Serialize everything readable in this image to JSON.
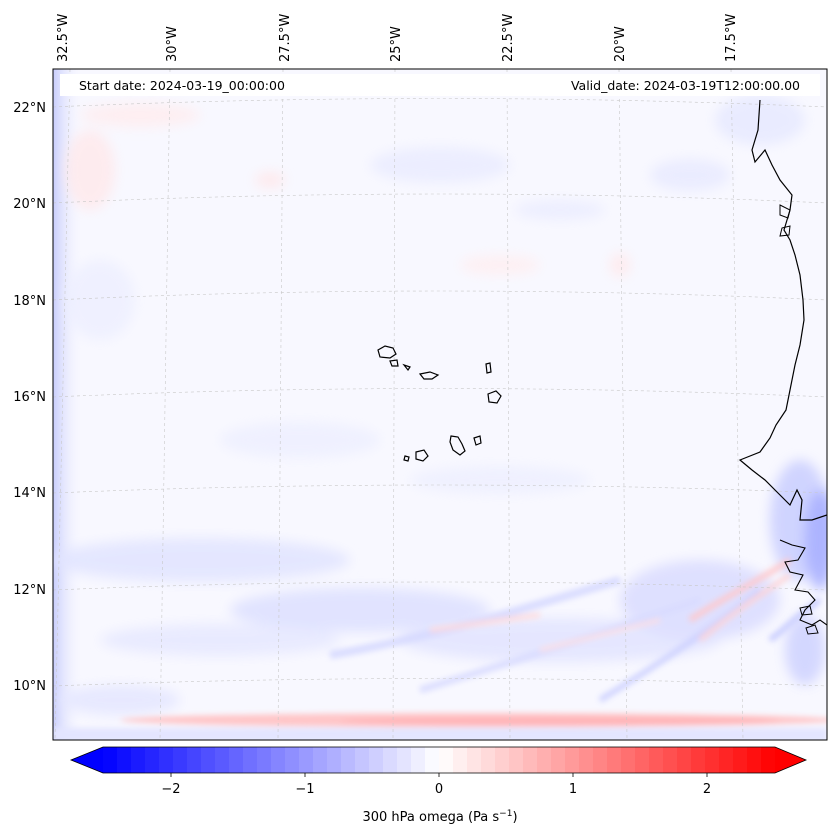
{
  "map": {
    "start_label": "Start date: 2024-03-19_00:00:00",
    "valid_label": "Valid_date: 2024-03-19T12:00:00.00",
    "lon_labels": [
      "32.5°W",
      "30°W",
      "27.5°W",
      "25°W",
      "22.5°W",
      "20°W",
      "17.5°W"
    ],
    "lat_labels": [
      "22°N",
      "20°N",
      "18°N",
      "16°N",
      "14°N",
      "12°N",
      "10°N"
    ]
  },
  "colorbar": {
    "ticks": [
      "−2",
      "−1",
      "0",
      "1",
      "2"
    ],
    "label": "300 hPa omega (Pa s",
    "label_sup": "−1",
    "label_end": ")",
    "min": -2.7,
    "max": 2.7
  },
  "colors": {
    "negative": "#0000ff",
    "positive": "#ff0000",
    "neutral": "#ffffff"
  }
}
